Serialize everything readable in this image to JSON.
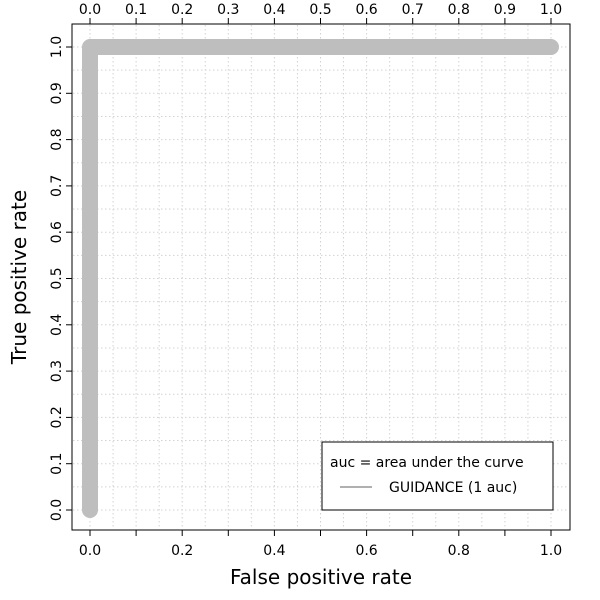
{
  "chart_data": {
    "type": "line",
    "xlabel": "False positive rate",
    "ylabel": "True positive rate",
    "xlim": [
      0,
      1
    ],
    "ylim": [
      0,
      1
    ],
    "x_ticks_bottom": [
      "0.0",
      "0.2",
      "0.4",
      "0.6",
      "0.8",
      "1.0"
    ],
    "x_ticks_top": [
      "0.0",
      "0.1",
      "0.2",
      "0.3",
      "0.4",
      "0.5",
      "0.6",
      "0.7",
      "0.8",
      "0.9",
      "1.0"
    ],
    "y_ticks": [
      "0.0",
      "0.1",
      "0.2",
      "0.3",
      "0.4",
      "0.5",
      "0.6",
      "0.7",
      "0.8",
      "0.9",
      "1.0"
    ],
    "grid": true,
    "legend": {
      "position": "bottom-right",
      "title": "auc = area under the curve",
      "entries": [
        "GUIDANCE (1 auc)"
      ]
    },
    "series": [
      {
        "name": "GUIDANCE (1 auc)",
        "color": "#bebebe",
        "x": [
          0,
          0,
          1
        ],
        "y": [
          0,
          1,
          1
        ]
      }
    ]
  }
}
